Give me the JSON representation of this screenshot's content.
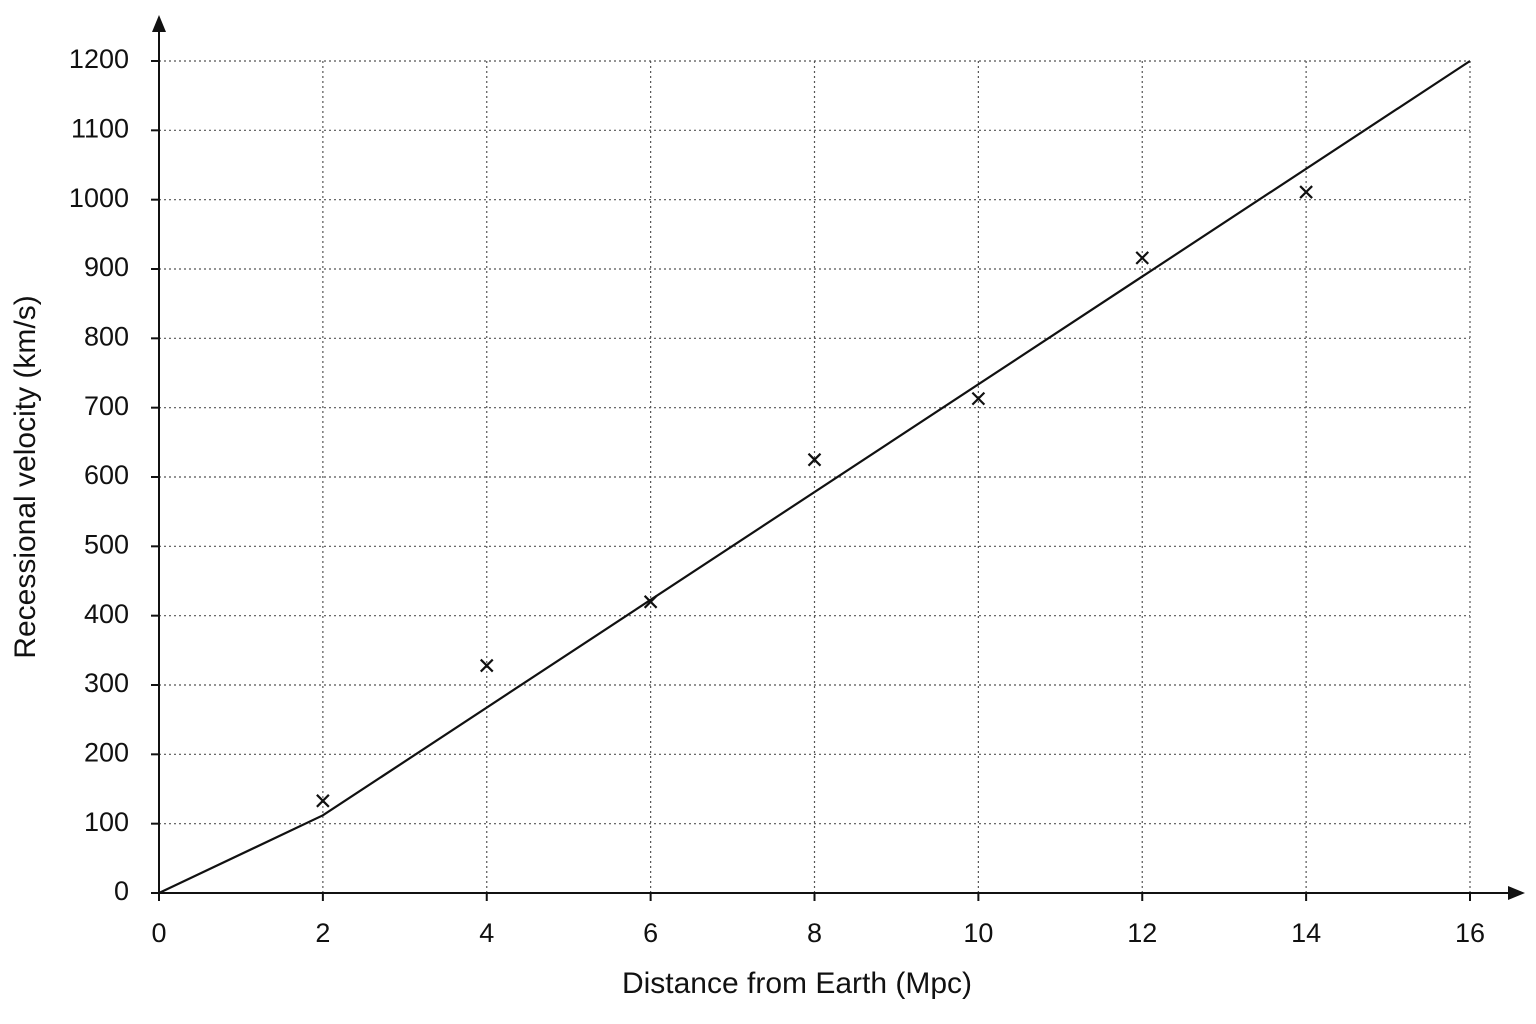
{
  "chart_data": {
    "type": "scatter",
    "x_label": "Distance from Earth (Mpc)",
    "y_label": "Recessional velocity (km/s)",
    "xlim": [
      0,
      16
    ],
    "ylim": [
      0,
      1200
    ],
    "xticks": [
      0,
      2,
      4,
      6,
      8,
      10,
      12,
      14,
      16
    ],
    "yticks": [
      0,
      100,
      200,
      300,
      400,
      500,
      600,
      700,
      800,
      900,
      1000,
      1100,
      1200
    ],
    "grid": true,
    "series": [
      {
        "type": "scatter",
        "color": "#111111",
        "x": [
          2,
          4,
          6,
          8,
          10,
          12,
          14
        ],
        "values": [
          133,
          328,
          420,
          625,
          713,
          916,
          1011
        ]
      },
      {
        "type": "line",
        "color": "#111111",
        "x": [
          0,
          2,
          16
        ],
        "values": [
          0,
          112,
          1200
        ]
      }
    ]
  }
}
